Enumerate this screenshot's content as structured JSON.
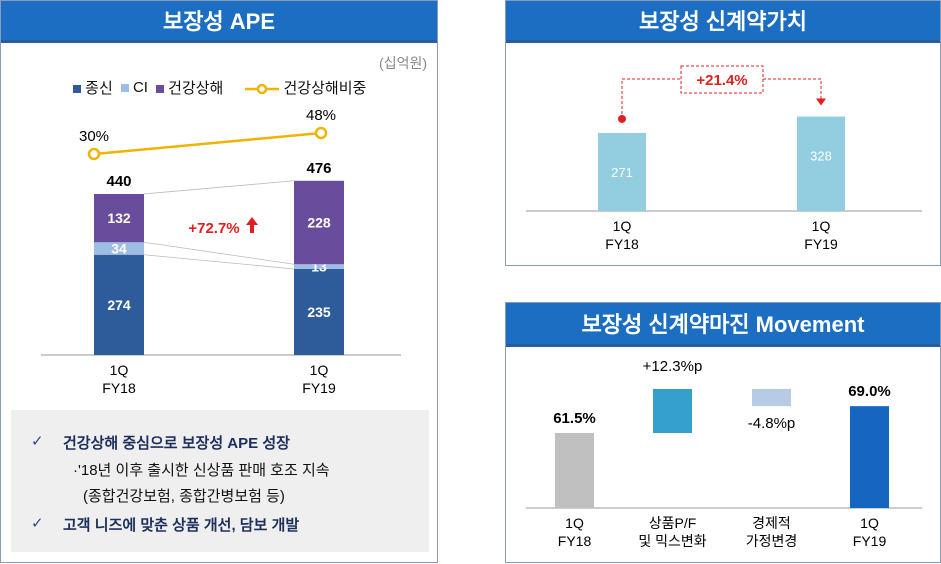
{
  "chart_data": [
    {
      "type": "bar",
      "stacked": true,
      "title": "보장성 APE",
      "unit": "(십억원)",
      "categories": [
        "1Q\nFY18",
        "1Q\nFY19"
      ],
      "category_lines": [
        [
          "1Q",
          "FY18"
        ],
        [
          "1Q",
          "FY19"
        ]
      ],
      "series": [
        {
          "name": "종신",
          "values": [
            274,
            235
          ],
          "color": "#2e5c9a"
        },
        {
          "name": "CI",
          "values": [
            34,
            13
          ],
          "color": "#9dbde3"
        },
        {
          "name": "건강상해",
          "values": [
            132,
            228
          ],
          "color": "#6a4c9c"
        }
      ],
      "totals": [
        440,
        476
      ],
      "line_series": {
        "name": "건강상해비중",
        "values": [
          30,
          48
        ],
        "labels": [
          "30%",
          "48%"
        ],
        "color": "#f0b400"
      },
      "annotation": "+72.7%",
      "legend_position": "top",
      "grid": false,
      "notes": {
        "bullet1": "건강상해 중심으로 보장성 APE 성장",
        "sub1": "·'18년 이후 출시한 신상품 판매 호조 지속",
        "sub2": "(종합건강보험, 종합간병보험 등)",
        "bullet2": "고객 니즈에 맞춘 상품 개선, 담보 개발",
        "check": "✓"
      }
    },
    {
      "type": "bar",
      "title": "보장성 신계약가치",
      "categories": [
        "1Q\nFY18",
        "1Q\nFY19"
      ],
      "category_lines": [
        [
          "1Q",
          "FY18"
        ],
        [
          "1Q",
          "FY19"
        ]
      ],
      "values": [
        271,
        328
      ],
      "color": "#92cde0",
      "annotation": "+21.4%",
      "annotation_color": "#e02020",
      "grid": false
    },
    {
      "type": "waterfall",
      "title": "보장성 신계약마진 Movement",
      "categories": [
        "1Q FY18",
        "상품P/F 및 믹스변화",
        "경제적 가정변경",
        "1Q FY19"
      ],
      "category_lines": [
        [
          "1Q",
          "FY18"
        ],
        [
          "상품P/F",
          "및 믹스변화"
        ],
        [
          "경제적",
          "가정변경"
        ],
        [
          "1Q",
          "FY19"
        ]
      ],
      "values": [
        61.5,
        12.3,
        -4.8,
        69.0
      ],
      "labels": [
        "61.5%",
        "+12.3%p",
        "-4.8%p",
        "69.0%"
      ],
      "colors": [
        "#c0c0c0",
        "#35a0cc",
        "#b6cce6",
        "#1666c0"
      ],
      "grid": false
    }
  ]
}
